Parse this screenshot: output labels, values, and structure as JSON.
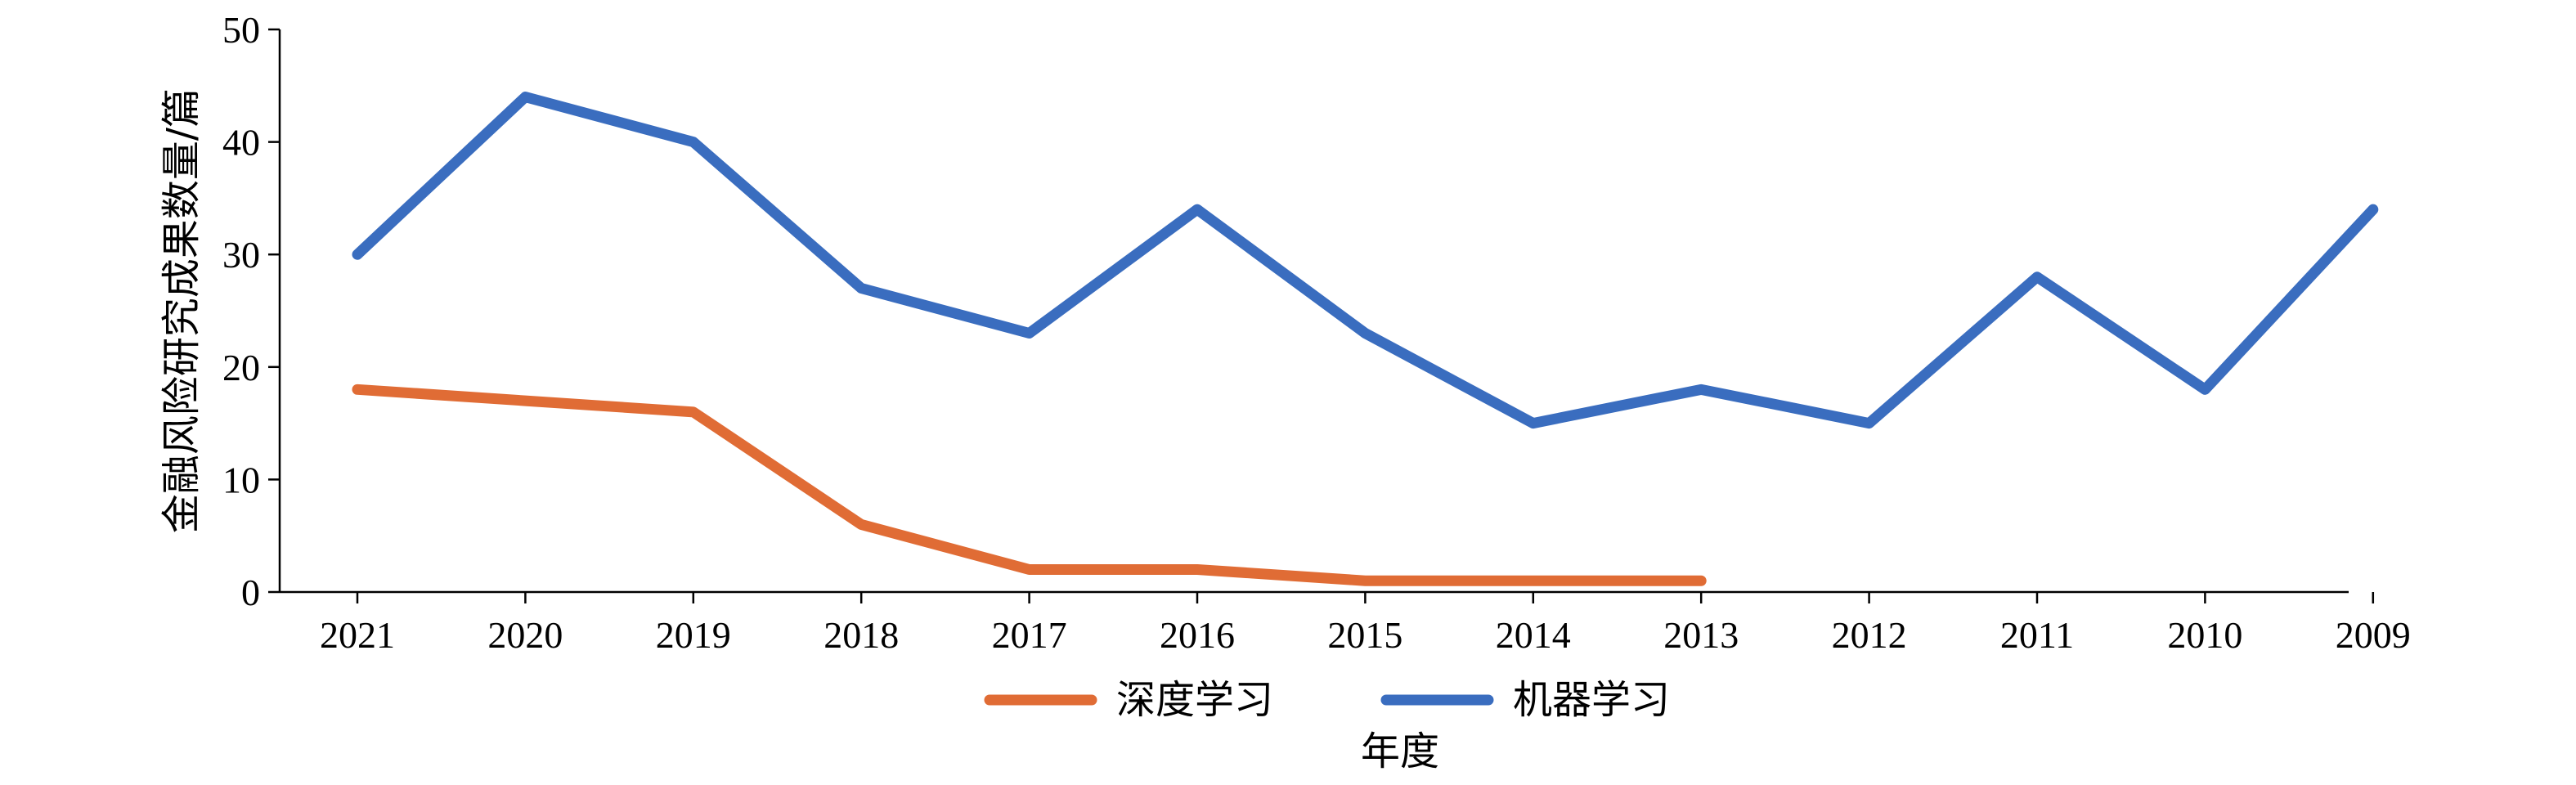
{
  "chart_data": {
    "type": "line",
    "title": "",
    "xlabel": "年度",
    "ylabel": "金融风险研究成果数量/篇",
    "categories": [
      "2021",
      "2020",
      "2019",
      "2018",
      "2017",
      "2016",
      "2015",
      "2014",
      "2013",
      "2012",
      "2011",
      "2010",
      "2009"
    ],
    "ylim": [
      0,
      50
    ],
    "yticks": [
      0,
      10,
      20,
      30,
      40,
      50
    ],
    "grid": false,
    "legend_position": "bottom",
    "series": [
      {
        "name": "深度学习",
        "color": "#E06C35",
        "values": [
          18,
          17,
          16,
          6,
          2,
          2,
          1,
          1,
          1,
          null,
          null,
          null,
          null
        ]
      },
      {
        "name": "机器学习",
        "color": "#3A6DBF",
        "values": [
          30,
          44,
          40,
          27,
          23,
          34,
          23,
          15,
          18,
          15,
          28,
          18,
          34
        ]
      }
    ]
  }
}
